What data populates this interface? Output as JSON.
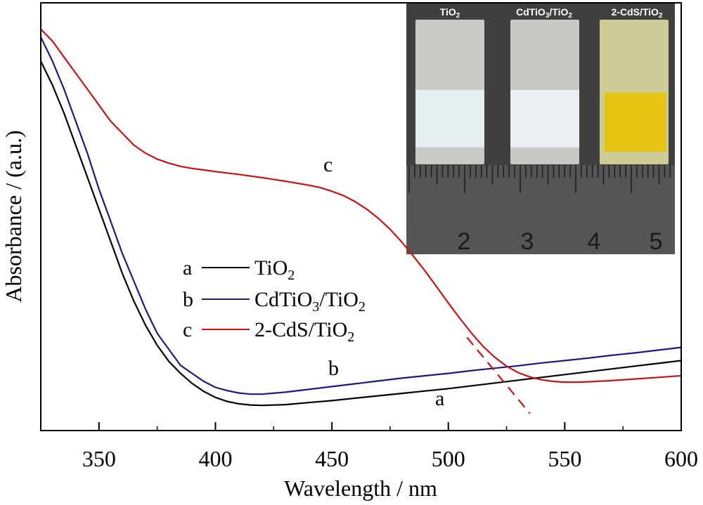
{
  "chart_data": {
    "type": "line",
    "xlabel": "Wavelength / nm",
    "ylabel": "Absorbance / (a.u.)",
    "xlim": [
      325,
      600
    ],
    "ylim": [
      0,
      1
    ],
    "x_ticks": [
      "350",
      "400",
      "450",
      "500",
      "550",
      "600"
    ],
    "grid": false,
    "y_tick_labels": false,
    "legend_position": "center-left",
    "series": [
      {
        "name": "TiO2",
        "marker": "a",
        "color": "#000000",
        "points": [
          [
            325,
            0.9
          ],
          [
            330,
            0.84
          ],
          [
            335,
            0.77
          ],
          [
            340,
            0.69
          ],
          [
            345,
            0.61
          ],
          [
            350,
            0.53
          ],
          [
            355,
            0.45
          ],
          [
            360,
            0.37
          ],
          [
            365,
            0.3
          ],
          [
            370,
            0.24
          ],
          [
            375,
            0.19
          ],
          [
            380,
            0.15
          ],
          [
            385,
            0.12
          ],
          [
            390,
            0.095
          ],
          [
            395,
            0.075
          ],
          [
            400,
            0.06
          ],
          [
            405,
            0.05
          ],
          [
            410,
            0.044
          ],
          [
            415,
            0.041
          ],
          [
            420,
            0.04
          ],
          [
            430,
            0.042
          ],
          [
            440,
            0.047
          ],
          [
            450,
            0.052
          ],
          [
            460,
            0.058
          ],
          [
            470,
            0.064
          ],
          [
            480,
            0.07
          ],
          [
            490,
            0.076
          ],
          [
            500,
            0.082
          ],
          [
            510,
            0.089
          ],
          [
            520,
            0.096
          ],
          [
            530,
            0.103
          ],
          [
            540,
            0.11
          ],
          [
            550,
            0.117
          ],
          [
            560,
            0.124
          ],
          [
            570,
            0.131
          ],
          [
            580,
            0.138
          ],
          [
            590,
            0.145
          ],
          [
            600,
            0.152
          ]
        ]
      },
      {
        "name": "CdTiO3/TiO2",
        "marker": "b",
        "color": "#1a1a80",
        "points": [
          [
            325,
            0.96
          ],
          [
            330,
            0.9
          ],
          [
            335,
            0.83
          ],
          [
            340,
            0.75
          ],
          [
            345,
            0.67
          ],
          [
            350,
            0.58
          ],
          [
            355,
            0.5
          ],
          [
            360,
            0.42
          ],
          [
            365,
            0.35
          ],
          [
            370,
            0.28
          ],
          [
            375,
            0.22
          ],
          [
            380,
            0.18
          ],
          [
            385,
            0.14
          ],
          [
            390,
            0.12
          ],
          [
            395,
            0.1
          ],
          [
            400,
            0.085
          ],
          [
            405,
            0.077
          ],
          [
            410,
            0.071
          ],
          [
            415,
            0.068
          ],
          [
            420,
            0.068
          ],
          [
            430,
            0.073
          ],
          [
            440,
            0.08
          ],
          [
            450,
            0.087
          ],
          [
            460,
            0.094
          ],
          [
            470,
            0.101
          ],
          [
            480,
            0.108
          ],
          [
            490,
            0.114
          ],
          [
            500,
            0.12
          ],
          [
            510,
            0.127
          ],
          [
            520,
            0.133
          ],
          [
            530,
            0.139
          ],
          [
            540,
            0.146
          ],
          [
            550,
            0.152
          ],
          [
            560,
            0.158
          ],
          [
            570,
            0.165
          ],
          [
            580,
            0.171
          ],
          [
            590,
            0.178
          ],
          [
            600,
            0.185
          ]
        ]
      },
      {
        "name": "2-CdS/TiO2",
        "marker": "c",
        "color": "#cc1111",
        "points": [
          [
            325,
            0.98
          ],
          [
            330,
            0.95
          ],
          [
            335,
            0.91
          ],
          [
            340,
            0.87
          ],
          [
            345,
            0.83
          ],
          [
            350,
            0.79
          ],
          [
            355,
            0.75
          ],
          [
            360,
            0.72
          ],
          [
            365,
            0.69
          ],
          [
            370,
            0.67
          ],
          [
            375,
            0.655
          ],
          [
            380,
            0.645
          ],
          [
            385,
            0.637
          ],
          [
            390,
            0.632
          ],
          [
            395,
            0.628
          ],
          [
            400,
            0.624
          ],
          [
            410,
            0.617
          ],
          [
            420,
            0.609
          ],
          [
            430,
            0.6
          ],
          [
            440,
            0.59
          ],
          [
            445,
            0.584
          ],
          [
            450,
            0.575
          ],
          [
            455,
            0.564
          ],
          [
            460,
            0.549
          ],
          [
            465,
            0.53
          ],
          [
            470,
            0.507
          ],
          [
            475,
            0.48
          ],
          [
            480,
            0.448
          ],
          [
            485,
            0.413
          ],
          [
            490,
            0.376
          ],
          [
            495,
            0.336
          ],
          [
            500,
            0.296
          ],
          [
            505,
            0.257
          ],
          [
            510,
            0.22
          ],
          [
            515,
            0.187
          ],
          [
            520,
            0.16
          ],
          [
            525,
            0.138
          ],
          [
            530,
            0.122
          ],
          [
            535,
            0.111
          ],
          [
            540,
            0.104
          ],
          [
            545,
            0.1
          ],
          [
            550,
            0.098
          ],
          [
            555,
            0.098
          ],
          [
            560,
            0.099
          ],
          [
            570,
            0.102
          ],
          [
            580,
            0.106
          ],
          [
            590,
            0.11
          ],
          [
            600,
            0.114
          ]
        ]
      }
    ],
    "extrapolation_line": {
      "color": "#cc1111",
      "style": "dashed",
      "points": [
        [
          508,
          0.21
        ],
        [
          535,
          0.02
        ]
      ]
    }
  },
  "legend": [
    {
      "marker": "a",
      "text": "TiO",
      "sub": "2",
      "tail": ""
    },
    {
      "marker": "b",
      "text": "CdTiO",
      "sub": "3",
      "tail": "/TiO",
      "sub2": "2"
    },
    {
      "marker": "c",
      "text": "2-CdS/TiO",
      "sub": "2",
      "tail": ""
    }
  ],
  "curve_labels": [
    "a",
    "b",
    "c"
  ],
  "inset_photo": {
    "labels": [
      {
        "text": "TiO",
        "sub": "2",
        "tail": ""
      },
      {
        "text": "CdTiO",
        "sub": "3",
        "tail": "/TiO",
        "sub2": "2"
      },
      {
        "text": "2-CdS/TiO",
        "sub": "2",
        "tail": ""
      }
    ],
    "ruler_numbers": [
      "2",
      "3",
      "4",
      "5"
    ]
  }
}
